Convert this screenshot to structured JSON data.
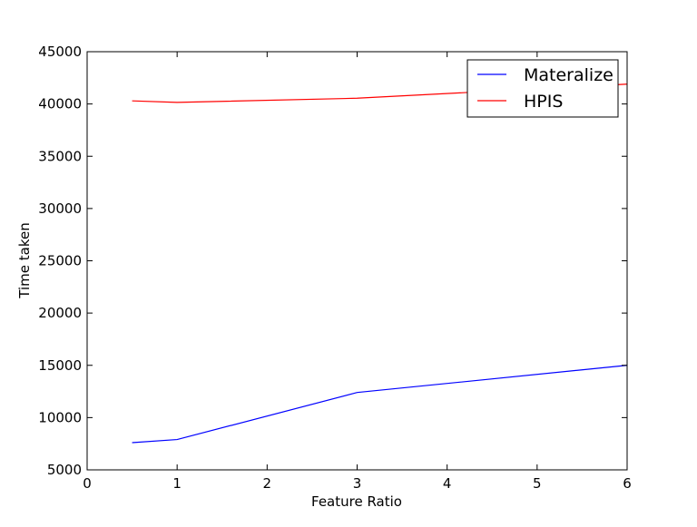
{
  "chart_data": {
    "type": "line",
    "title": "",
    "xlabel": "Feature Ratio",
    "ylabel": "Time taken",
    "xlim": [
      0,
      6
    ],
    "ylim": [
      5000,
      45000
    ],
    "xticks": [
      0,
      1,
      2,
      3,
      4,
      5,
      6
    ],
    "yticks": [
      5000,
      10000,
      15000,
      20000,
      25000,
      30000,
      35000,
      40000,
      45000
    ],
    "grid": false,
    "legend_position": "top-right",
    "series": [
      {
        "name": "Materalize",
        "color": "#0000ff",
        "x": [
          0.5,
          1,
          3,
          6
        ],
        "y": [
          7600,
          7900,
          12400,
          15000
        ]
      },
      {
        "name": "HPIS",
        "color": "#ff0000",
        "x": [
          0.5,
          1,
          3,
          6
        ],
        "y": [
          40300,
          40150,
          40550,
          41900
        ]
      }
    ]
  }
}
